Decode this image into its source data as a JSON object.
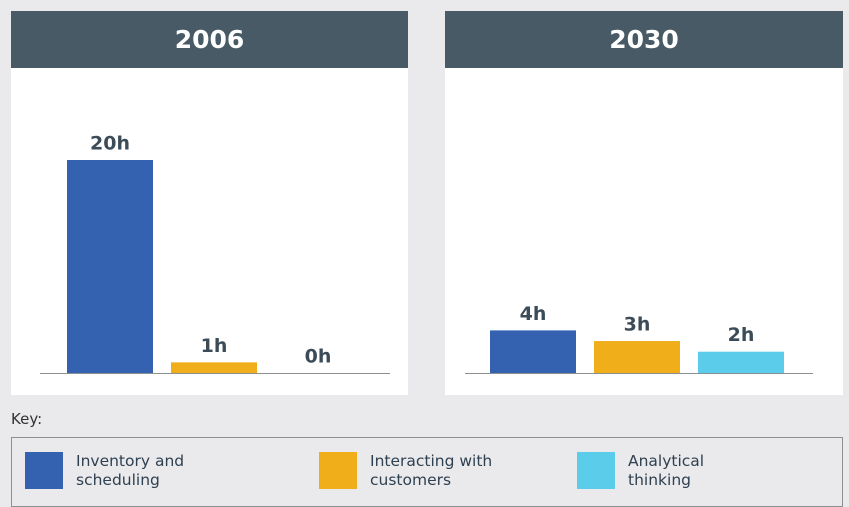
{
  "chart_data": [
    {
      "type": "bar",
      "title": "2006",
      "values": [
        20,
        1,
        0
      ],
      "value_labels": [
        "20h",
        "1h",
        "0h"
      ],
      "ylim": [
        0,
        20
      ]
    },
    {
      "type": "bar",
      "title": "2030",
      "values": [
        4,
        3,
        2
      ],
      "value_labels": [
        "4h",
        "3h",
        "2h"
      ],
      "ylim": [
        0,
        20
      ]
    }
  ],
  "legend": {
    "title": "Key:",
    "entries": [
      {
        "name": "Inventory and scheduling",
        "color": "#3462b0"
      },
      {
        "name": "Interacting with customers",
        "color": "#f0ae1a"
      },
      {
        "name": "Analytical thinking",
        "color": "#5bcdeb"
      }
    ]
  }
}
